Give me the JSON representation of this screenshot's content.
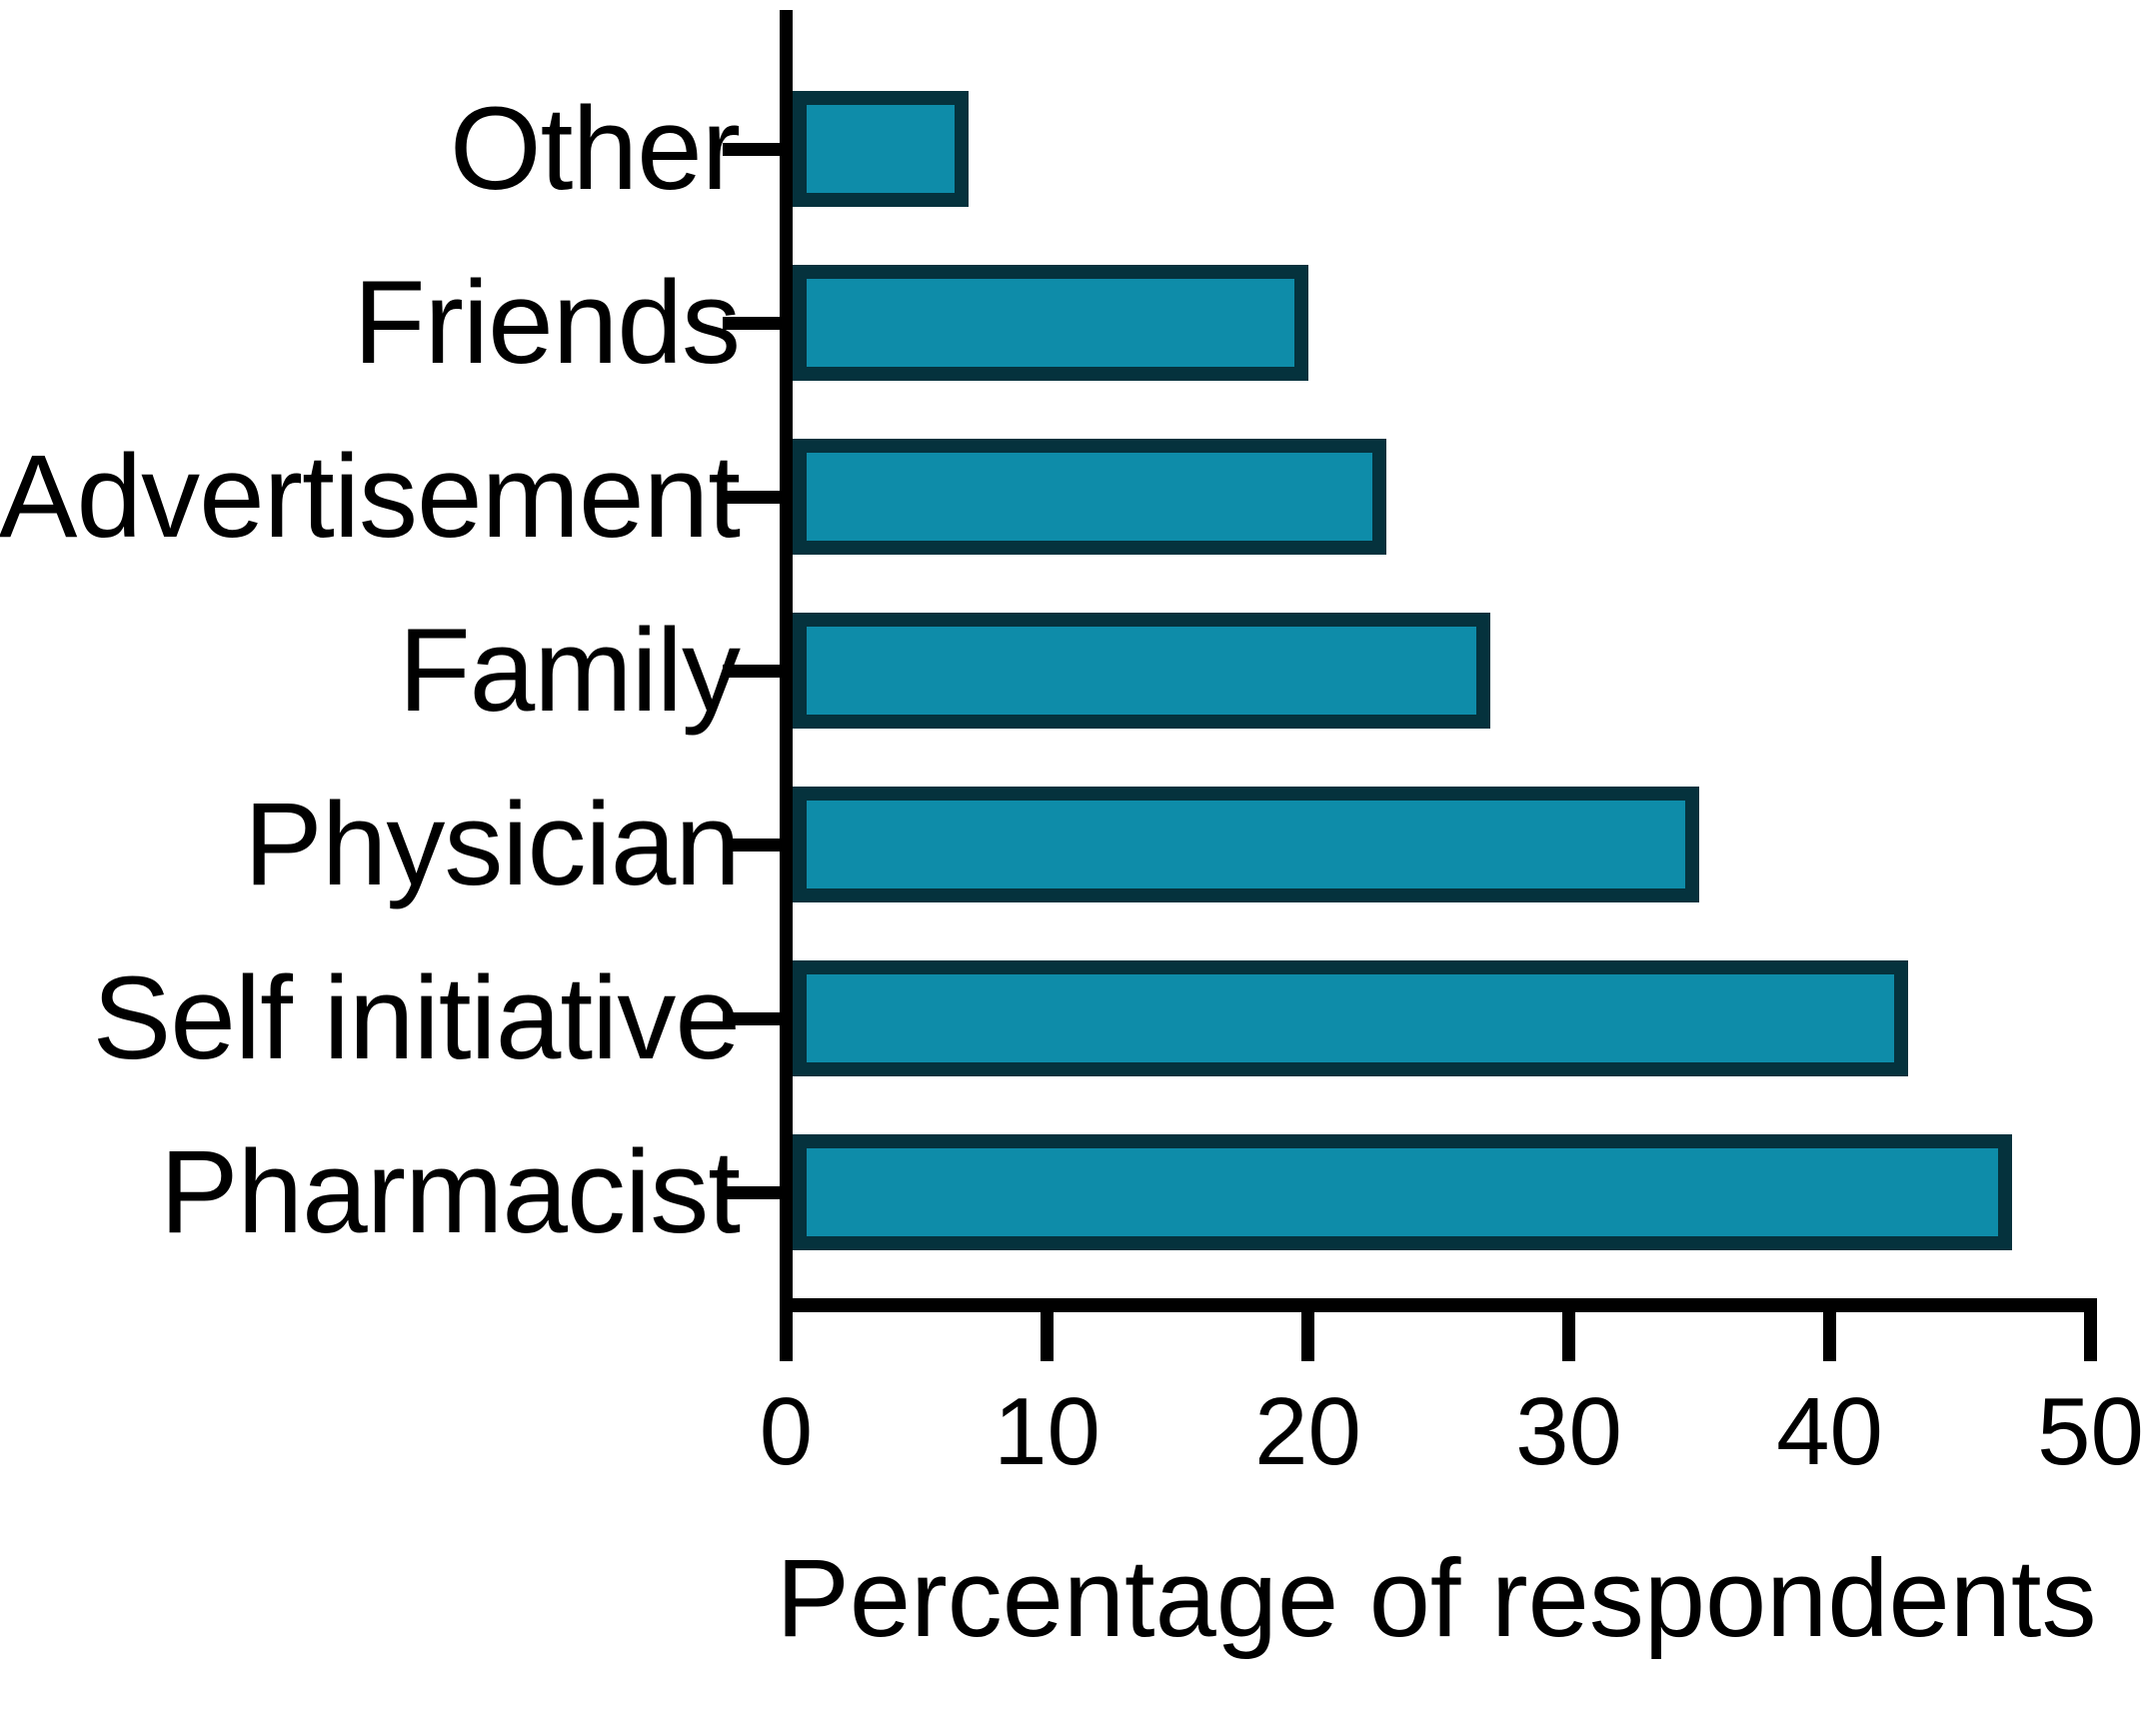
{
  "chart_data": {
    "type": "bar",
    "orientation": "horizontal",
    "title": "",
    "xlabel": "Percentage of respondents",
    "ylabel": "",
    "categories": [
      "Other",
      "Friends",
      "Advertisement",
      "Family",
      "Physician",
      "Self initiative",
      "Pharmacist"
    ],
    "values": [
      7,
      20,
      23,
      27,
      35,
      43,
      47
    ],
    "xlim": [
      0,
      50
    ],
    "x_ticks": [
      0,
      10,
      20,
      30,
      40,
      50
    ],
    "grid": "off",
    "legend": "none",
    "bar_fill_color": "#0E8CA9",
    "bar_outline_color": "#05323D",
    "axis_color": "#000000",
    "text_color": "#000000",
    "background_color": "#FFFFFF"
  }
}
